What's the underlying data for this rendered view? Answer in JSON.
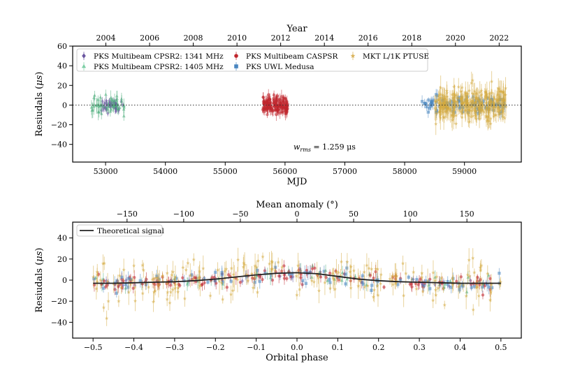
{
  "chart_data": [
    {
      "type": "scatter",
      "xlabel": "MJD",
      "ylabel": "Resiudals (μs)",
      "top_axis_label": "Year",
      "xlim": [
        52450,
        59950
      ],
      "ylim": [
        -58,
        60
      ],
      "xticks": [
        53000,
        54000,
        55000,
        56000,
        57000,
        58000,
        59000
      ],
      "yticks": [
        -40,
        -20,
        0,
        20,
        40,
        60
      ],
      "top_ticks": [
        {
          "label": "2004",
          "mjd": 53005
        },
        {
          "label": "2006",
          "mjd": 53736
        },
        {
          "label": "2008",
          "mjd": 54466
        },
        {
          "label": "2010",
          "mjd": 55197
        },
        {
          "label": "2012",
          "mjd": 55927
        },
        {
          "label": "2014",
          "mjd": 56658
        },
        {
          "label": "2016",
          "mjd": 57388
        },
        {
          "label": "2018",
          "mjd": 58119
        },
        {
          "label": "2020",
          "mjd": 58849
        },
        {
          "label": "2022",
          "mjd": 59580
        }
      ],
      "zero_line": true,
      "annotation": {
        "prefix": "w",
        "subscript": "rms",
        "suffix": " = 1.259 μs"
      },
      "legend": {
        "placement": "top-left",
        "entries": [
          {
            "name": "PKS Multibeam CPSR2: 1341 MHz",
            "color": "#6a55a0",
            "marker": "diamond"
          },
          {
            "name": "PKS Multibeam CPSR2: 1405 MHz",
            "color": "#7ecfa6",
            "marker": "triangle"
          },
          {
            "name": "PKS Multibeam CASPSR",
            "color": "#c0262d",
            "marker": "circle"
          },
          {
            "name": "PKS UWL Medusa",
            "color": "#4a86c0",
            "marker": "square"
          },
          {
            "name": "MKT L/1K PTUSE",
            "color": "#d9b25a",
            "marker": "star"
          }
        ]
      },
      "series": [
        {
          "name": "PKS Multibeam CPSR2: 1341 MHz",
          "x_range": [
            52900,
            53300
          ],
          "n": 40,
          "sigma": 3.5,
          "err": 4,
          "color": "#6a55a0"
        },
        {
          "name": "PKS Multibeam CPSR2: 1405 MHz",
          "x_range": [
            52750,
            53320
          ],
          "n": 50,
          "sigma": 5,
          "err": 6,
          "color": "#4fae7d"
        },
        {
          "name": "PKS Multibeam CASPSR",
          "x_range": [
            55630,
            56050
          ],
          "n": 150,
          "sigma": 4,
          "err": 5,
          "color": "#c0262d"
        },
        {
          "name": "PKS UWL Medusa",
          "x_range": [
            58280,
            59700
          ],
          "n": 110,
          "sigma": 4,
          "err": 5,
          "color": "#4a86c0"
        },
        {
          "name": "MKT L/1K PTUSE",
          "x_range": [
            58500,
            59700
          ],
          "n": 280,
          "sigma": 9,
          "err": 9,
          "color": "#d4a93e"
        }
      ]
    },
    {
      "type": "scatter",
      "xlabel": "Orbital phase",
      "ylabel": "Resiudals (μs)",
      "top_axis_label": "Mean anomaly (°)",
      "xlim": [
        -0.55,
        0.55
      ],
      "ylim": [
        -55,
        55
      ],
      "xticks": [
        -0.5,
        -0.4,
        -0.3,
        -0.2,
        -0.1,
        0.0,
        0.1,
        0.2,
        0.3,
        0.4,
        0.5
      ],
      "xtick_labels": [
        "−0.5",
        "−0.4",
        "−0.3",
        "−0.2",
        "−0.1",
        "0.0",
        "0.1",
        "0.2",
        "0.3",
        "0.4",
        "0.5"
      ],
      "yticks": [
        -40,
        -20,
        0,
        20,
        40
      ],
      "top_ticks": [
        {
          "label": "−150",
          "deg": -150
        },
        {
          "label": "−100",
          "deg": -100
        },
        {
          "label": "−50",
          "deg": -50
        },
        {
          "label": "0",
          "deg": 0
        },
        {
          "label": "50",
          "deg": 50
        },
        {
          "label": "100",
          "deg": 100
        },
        {
          "label": "150",
          "deg": 150
        }
      ],
      "legend": {
        "placement": "top-left",
        "entries": [
          {
            "name": "Theoretical signal",
            "color": "#222222",
            "marker": "line"
          }
        ]
      },
      "theoretical_signal": {
        "x": [
          -0.5,
          -0.45,
          -0.4,
          -0.35,
          -0.3,
          -0.25,
          -0.2,
          -0.15,
          -0.1,
          -0.05,
          0.0,
          0.05,
          0.1,
          0.15,
          0.2,
          0.25,
          0.3,
          0.35,
          0.4,
          0.45,
          0.5
        ],
        "y": [
          -3,
          -3,
          -2.5,
          -2,
          -1.5,
          -0.5,
          1,
          3,
          5,
          6.5,
          7,
          6,
          3.5,
          1,
          -0.5,
          -1.5,
          -2,
          -2.5,
          -3,
          -3,
          -3
        ]
      },
      "series": [
        {
          "name": "PKS Multibeam CPSR2: 1341 MHz",
          "n": 30,
          "sigma": 3,
          "err": 4,
          "color": "#6a55a0"
        },
        {
          "name": "PKS Multibeam CPSR2: 1405 MHz",
          "n": 45,
          "sigma": 4,
          "err": 5,
          "color": "#4fae7d"
        },
        {
          "name": "PKS Multibeam CASPSR",
          "n": 130,
          "sigma": 4,
          "err": 5,
          "color": "#c0262d"
        },
        {
          "name": "PKS UWL Medusa",
          "n": 80,
          "sigma": 4,
          "err": 5,
          "color": "#4a86c0"
        },
        {
          "name": "MKT L/1K PTUSE",
          "n": 200,
          "sigma": 10,
          "err": 9,
          "color": "#d4a93e"
        }
      ]
    }
  ]
}
